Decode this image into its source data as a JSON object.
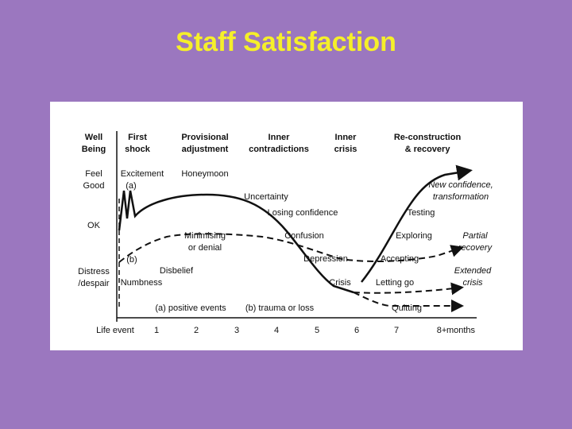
{
  "header": {
    "title": "Staff Satisfaction"
  },
  "diagram": {
    "column_headers": [
      [
        "Well",
        "Being"
      ],
      [
        "First",
        "shock"
      ],
      [
        "Provisional",
        "adjustment"
      ],
      [
        "Inner",
        "contradictions"
      ],
      [
        "Inner",
        "crisis"
      ],
      [
        "Re-construction",
        "& recovery"
      ]
    ],
    "row_labels": [
      [
        "Feel",
        "Good"
      ],
      [
        "OK"
      ],
      [
        "Distress",
        "/despair"
      ]
    ],
    "annotations": [
      [
        "Excitement"
      ],
      [
        "(a)"
      ],
      [
        "Honeymoon"
      ],
      [
        "Uncertainty"
      ],
      [
        "Losing confidence"
      ],
      [
        "Confusion"
      ],
      [
        "Minimising",
        "or denial"
      ],
      [
        "(b)"
      ],
      [
        "Disbelief"
      ],
      [
        "Numbness"
      ],
      [
        "Depression"
      ],
      [
        "Crisis"
      ],
      [
        "Letting go"
      ],
      [
        "Accepting"
      ],
      [
        "Exploring"
      ],
      [
        "Testing"
      ],
      [
        "New confidence,",
        "transformation"
      ],
      [
        "Partial",
        "recovery"
      ],
      [
        "Extended",
        "crisis"
      ],
      [
        "Quitting"
      ],
      [
        "(a) positive events"
      ],
      [
        "(b) trauma or loss"
      ]
    ],
    "x_axis": {
      "start": "Life event",
      "ticks": [
        "1",
        "2",
        "3",
        "4",
        "5",
        "6",
        "7",
        "8+"
      ],
      "unit": "months"
    }
  }
}
